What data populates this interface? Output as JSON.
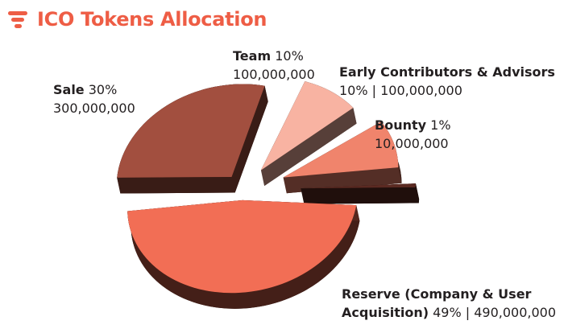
{
  "header": {
    "title": "ICO Tokens Allocation",
    "logo_icon": "stacked-bars-logo-icon",
    "accent": "#ee5d45"
  },
  "chart_data": {
    "type": "pie",
    "title": "ICO Tokens Allocation",
    "exploded": true,
    "three_d": true,
    "slices": [
      {
        "name": "Reserve (Company & User Acquisition)",
        "percent": 49,
        "value": 490000000,
        "pct_label": "49%",
        "value_label": "490,000,000",
        "color": "#f26e55"
      },
      {
        "name": "Sale",
        "percent": 30,
        "value": 300000000,
        "pct_label": "30%",
        "value_label": "300,000,000",
        "color": "#a24f3f"
      },
      {
        "name": "Team",
        "percent": 10,
        "value": 100000000,
        "pct_label": "10%",
        "value_label": "100,000,000",
        "color": "#f8b3a2"
      },
      {
        "name": "Early Contributors & Advisors",
        "percent": 10,
        "value": 100000000,
        "pct_label": "10%",
        "value_label": "100,000,000",
        "color": "#f0846c"
      },
      {
        "name": "Bounty",
        "percent": 1,
        "value": 10000000,
        "pct_label": "1%",
        "value_label": "10,000,000",
        "color": "#5b2a22"
      }
    ],
    "labels": {
      "sale": {
        "name": "Sale",
        "pct": "30%",
        "value": "300,000,000"
      },
      "team": {
        "name": "Team",
        "pct": "10%",
        "value": "100,000,000"
      },
      "early": {
        "name": "Early Contributors & Advisors",
        "line2": "10% | 100,000,000"
      },
      "bounty": {
        "name": "Bounty",
        "pct": "1%",
        "value": "10,000,000"
      },
      "reserve": {
        "name_line1": "Reserve (Company & User",
        "name_line2": "Acquisition)",
        "rest": "49% | 490,000,000"
      }
    }
  }
}
